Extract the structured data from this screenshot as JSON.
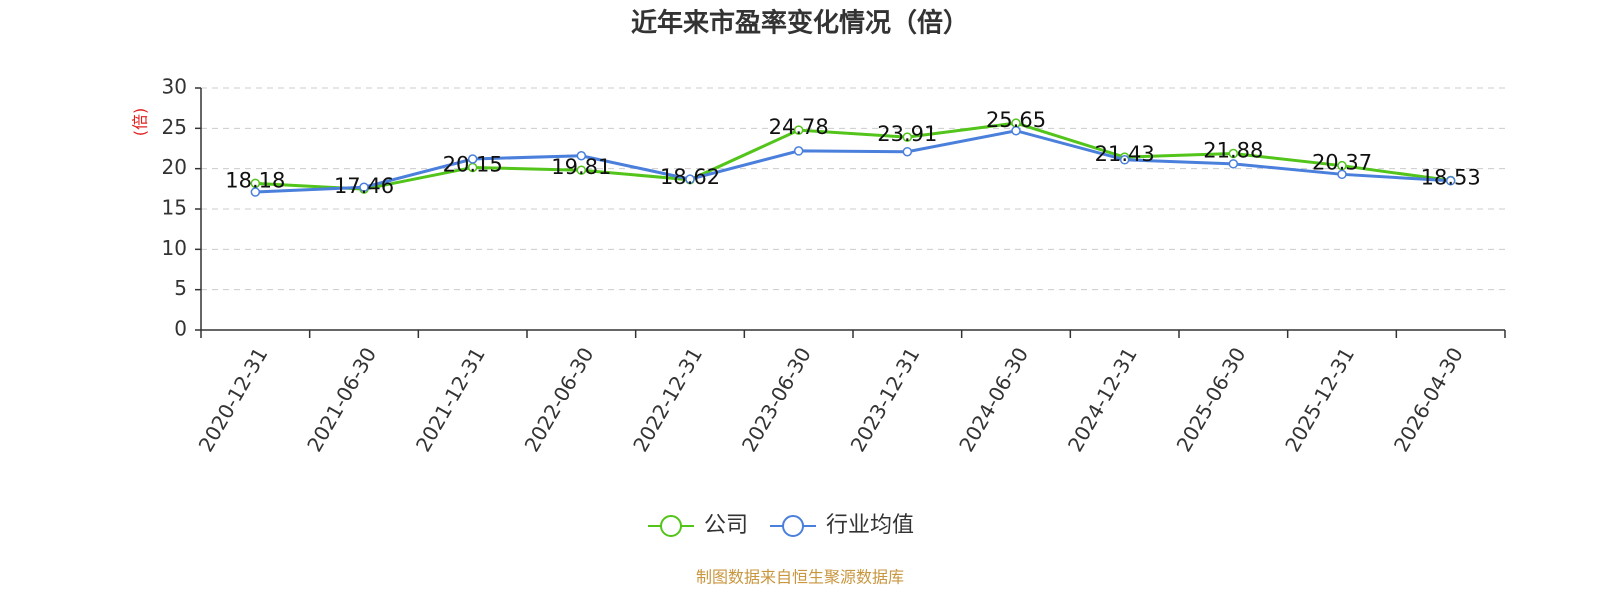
{
  "chart_data": {
    "type": "line",
    "title": "近年来市盈率变化情况（倍）",
    "y_axis_label": "(倍)",
    "source": "制图数据来自恒生聚源数据库",
    "categories": [
      "2020-12-31",
      "2021-06-30",
      "2021-12-31",
      "2022-06-30",
      "2022-12-31",
      "2023-06-30",
      "2023-12-31",
      "2024-06-30",
      "2024-12-31",
      "2025-06-30",
      "2025-12-31",
      "2026-04-30"
    ],
    "series": [
      {
        "name": "公司",
        "color": "#52c41a",
        "data_labels": true,
        "values": [
          18.18,
          17.46,
          20.15,
          19.81,
          18.62,
          24.78,
          23.91,
          25.65,
          21.43,
          21.88,
          20.37,
          18.53
        ]
      },
      {
        "name": "行业均值",
        "color": "#4a7fdc",
        "data_labels": false,
        "values": [
          17.1,
          17.7,
          21.2,
          21.6,
          18.7,
          22.2,
          22.1,
          24.7,
          21.1,
          20.6,
          19.3,
          18.5
        ]
      }
    ],
    "ylim": [
      0,
      30
    ],
    "yticks": [
      0,
      5,
      10,
      15,
      20,
      25,
      30
    ],
    "grid": true,
    "legend": "bottom"
  }
}
